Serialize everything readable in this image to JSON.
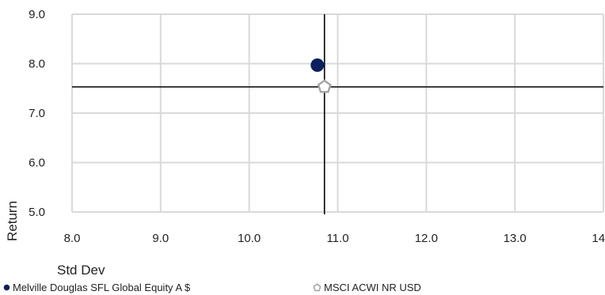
{
  "chart_data": {
    "type": "scatter",
    "xlabel": "Std Dev",
    "ylabel": "Return",
    "xlim": [
      8.0,
      14.0
    ],
    "ylim": [
      5.0,
      9.0
    ],
    "x_ticks": [
      "8.0",
      "9.0",
      "10.0",
      "11.0",
      "12.0",
      "13.0",
      "14.0"
    ],
    "y_ticks": [
      "5.0",
      "6.0",
      "7.0",
      "8.0",
      "9.0"
    ],
    "grid": true,
    "legend_position": "bottom",
    "crosshair": {
      "x": 10.85,
      "y": 7.53
    },
    "series": [
      {
        "name": "Melville Douglas SFL Global Equity A $",
        "x": 10.77,
        "y": 7.97,
        "marker": "circle",
        "color": "#0d1f5c"
      },
      {
        "name": "MSCI ACWI NR USD",
        "x": 10.85,
        "y": 7.53,
        "marker": "pentagon",
        "color": "#a6a6a6"
      }
    ]
  }
}
